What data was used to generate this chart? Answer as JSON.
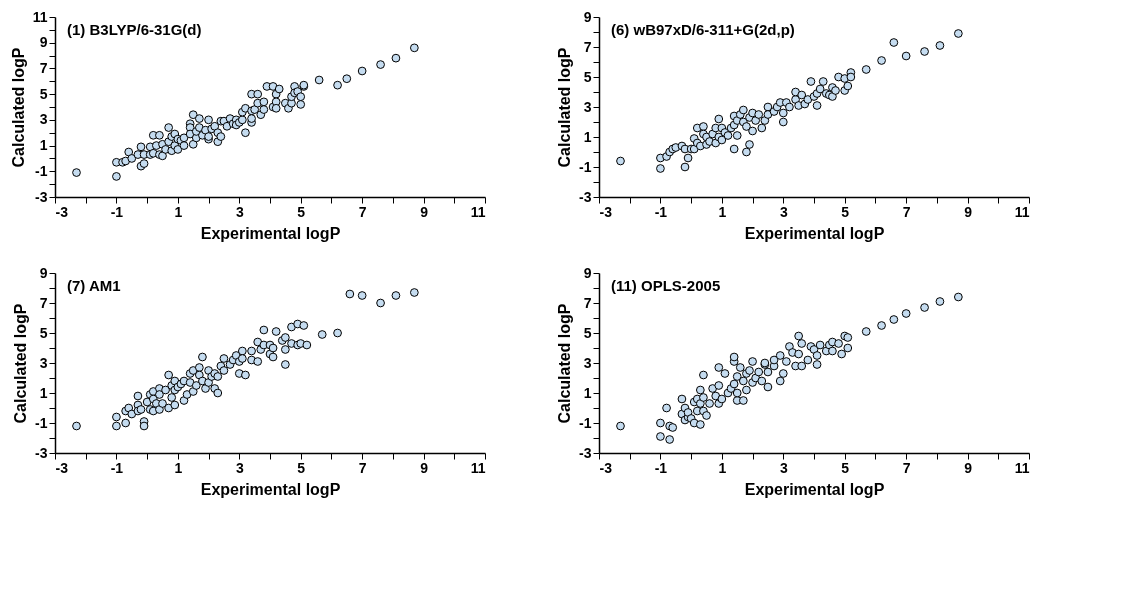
{
  "chart_data": [
    {
      "type": "scatter",
      "title": "(1) B3LYP/6-31G(d)",
      "xlabel": "Experimental logP",
      "ylabel": "Calculated logP",
      "color": "#c5dcf0",
      "marker": "circle",
      "grid": false,
      "xlim": [
        -3,
        11
      ],
      "ylim": [
        -3,
        11
      ],
      "xticks": [
        -3,
        {
          "value": -2,
          "label": null
        },
        -1,
        {
          "value": 0,
          "label": null
        },
        1,
        {
          "value": 2,
          "label": null
        },
        3,
        {
          "value": 4,
          "label": null
        },
        5,
        {
          "value": 6,
          "label": null
        },
        7,
        {
          "value": 8,
          "label": null
        },
        9,
        {
          "value": 10,
          "label": null
        },
        11
      ],
      "yticks": [
        -3,
        {
          "value": -2,
          "label": null
        },
        -1,
        {
          "value": 0,
          "label": null
        },
        1,
        {
          "value": 2,
          "label": null
        },
        3,
        {
          "value": 4,
          "label": null
        },
        5,
        {
          "value": 6,
          "label": null
        },
        7,
        {
          "value": 8,
          "label": null
        },
        9,
        {
          "value": 10,
          "label": null
        },
        11
      ],
      "x": [
        -2.3,
        -1,
        -1,
        -0.8,
        -0.7,
        -0.6,
        -0.5,
        -0.3,
        -0.2,
        -0.2,
        -0.1,
        -0.1,
        0.1,
        0.1,
        0.2,
        0.2,
        0.3,
        0.4,
        0.4,
        0.5,
        0.5,
        0.6,
        0.7,
        0.7,
        0.8,
        0.8,
        0.9,
        0.9,
        1.0,
        1.0,
        1.1,
        1.2,
        1.2,
        1.4,
        1.4,
        1.4,
        1.5,
        1.5,
        1.6,
        1.6,
        1.7,
        1.7,
        1.8,
        1.9,
        2.0,
        2.0,
        2.0,
        2.1,
        2.2,
        2.3,
        2.3,
        2.4,
        2.4,
        2.5,
        2.6,
        2.7,
        2.8,
        2.9,
        2.9,
        3.0,
        3.1,
        3.1,
        3.2,
        3.2,
        3.4,
        3.4,
        3.4,
        3.4,
        3.5,
        3.6,
        3.6,
        3.7,
        3.8,
        3.8,
        3.9,
        4.1,
        4.1,
        4.2,
        4.2,
        4.2,
        4.3,
        4.5,
        4.6,
        4.7,
        4.7,
        4.8,
        4.8,
        4.9,
        5.0,
        5.0,
        5.1,
        5.1,
        5.6,
        6.2,
        6.5,
        7.0,
        7.6,
        8.1,
        8.7
      ],
      "values": [
        -1.1,
        -0.3,
        -1.4,
        -0.3,
        -0.2,
        0.5,
        0.0,
        0.3,
        0.9,
        -0.6,
        -0.4,
        0.3,
        0.3,
        0.9,
        1.8,
        0.4,
        1.0,
        1.8,
        0.3,
        1.1,
        0.2,
        0.7,
        1.3,
        2.4,
        1.7,
        0.6,
        1.0,
        1.9,
        1.5,
        0.7,
        1.4,
        1.0,
        1.6,
        2.7,
        2.4,
        1.9,
        3.4,
        1.1,
        1.6,
        2.1,
        3.1,
        2.4,
        1.8,
        2.2,
        1.5,
        3.0,
        1.7,
        2.3,
        2.5,
        1.3,
        2.0,
        2.9,
        1.7,
        2.9,
        2.5,
        3.1,
        2.7,
        3.0,
        2.6,
        2.8,
        3.0,
        3.6,
        3.9,
        2.0,
        5.0,
        3.7,
        2.8,
        3.1,
        3.8,
        5.0,
        4.3,
        3.4,
        4.4,
        3.8,
        5.6,
        5.6,
        4.0,
        5.0,
        4.4,
        3.9,
        5.4,
        4.3,
        3.9,
        4.3,
        4.8,
        5.6,
        5.1,
        5.2,
        4.2,
        4.8,
        5.6,
        5.7,
        6.1,
        5.7,
        6.2,
        6.8,
        7.3,
        7.8,
        8.6
      ]
    },
    {
      "type": "scatter",
      "title": "(6) wB97xD/6-311+G(2d,p)",
      "xlabel": "Experimental logP",
      "ylabel": "Calculated logP",
      "color": "#c5dcf0",
      "marker": "circle",
      "grid": false,
      "xlim": [
        -3,
        11
      ],
      "ylim": [
        -3,
        9
      ],
      "xticks": [
        -3,
        {
          "value": -2,
          "label": null
        },
        -1,
        {
          "value": 0,
          "label": null
        },
        1,
        {
          "value": 2,
          "label": null
        },
        3,
        {
          "value": 4,
          "label": null
        },
        5,
        {
          "value": 6,
          "label": null
        },
        7,
        {
          "value": 8,
          "label": null
        },
        9,
        {
          "value": 10,
          "label": null
        },
        11
      ],
      "yticks": [
        -3,
        {
          "value": -2,
          "label": null
        },
        -1,
        {
          "value": 0,
          "label": null
        },
        1,
        {
          "value": 2,
          "label": null
        },
        3,
        {
          "value": 4,
          "label": null
        },
        5,
        {
          "value": 6,
          "label": null
        },
        7,
        {
          "value": 8,
          "label": null
        },
        9
      ],
      "x": [
        -2.3,
        -1,
        -1,
        -0.8,
        -0.7,
        -0.6,
        -0.5,
        -0.3,
        -0.2,
        -0.2,
        -0.1,
        0,
        0.1,
        0.1,
        0.2,
        0.2,
        0.3,
        0.4,
        0.4,
        0.5,
        0.5,
        0.6,
        0.7,
        0.8,
        0.8,
        0.9,
        0.9,
        1.0,
        1.0,
        1.1,
        1.2,
        1.3,
        1.4,
        1.4,
        1.4,
        1.5,
        1.5,
        1.6,
        1.7,
        1.7,
        1.8,
        1.8,
        1.9,
        1.9,
        2.0,
        2.0,
        2.1,
        2.2,
        2.3,
        2.4,
        2.5,
        2.5,
        2.7,
        2.8,
        2.9,
        3.0,
        3.0,
        3.1,
        3.2,
        3.4,
        3.4,
        3.5,
        3.6,
        3.7,
        3.8,
        3.9,
        4.0,
        4.1,
        4.1,
        4.2,
        4.3,
        4.4,
        4.5,
        4.6,
        4.6,
        4.7,
        4.8,
        5.0,
        5.0,
        5.1,
        5.2,
        5.2,
        5.7,
        6.2,
        6.6,
        7.0,
        7.6,
        8.1,
        8.7
      ],
      "values": [
        -0.6,
        -0.4,
        -1.1,
        -0.3,
        0.0,
        0.2,
        0.3,
        0.4,
        0.2,
        -1.0,
        -0.4,
        0.2,
        0.9,
        0.2,
        1.6,
        0.6,
        0.4,
        1.7,
        1.2,
        0.5,
        1.0,
        0.7,
        1.2,
        1.6,
        0.6,
        1.0,
        2.2,
        0.8,
        1.6,
        1.3,
        1.1,
        1.6,
        1.8,
        2.4,
        0.2,
        1.1,
        2.1,
        2.5,
        2.8,
        2.0,
        1.7,
        0.0,
        0.5,
        2.3,
        1.4,
        2.6,
        2.1,
        2.5,
        1.6,
        2.1,
        3.0,
        2.5,
        2.7,
        3.0,
        3.3,
        2.6,
        2.0,
        3.3,
        3.0,
        3.5,
        4.0,
        3.1,
        3.8,
        3.2,
        3.5,
        4.7,
        3.7,
        3.9,
        3.1,
        4.2,
        4.7,
        3.9,
        3.8,
        3.7,
        4.3,
        4.1,
        5.0,
        4.9,
        4.1,
        4.4,
        5.3,
        5.0,
        5.5,
        6.1,
        7.3,
        6.4,
        6.7,
        7.1,
        7.9
      ]
    },
    {
      "type": "scatter",
      "title": "(7) AM1",
      "xlabel": "Experimental logP",
      "ylabel": "Calculated logP",
      "color": "#c5dcf0",
      "marker": "circle",
      "grid": false,
      "xlim": [
        -3,
        11
      ],
      "ylim": [
        -3,
        9
      ],
      "xticks": [
        -3,
        {
          "value": -2,
          "label": null
        },
        -1,
        {
          "value": 0,
          "label": null
        },
        1,
        {
          "value": 2,
          "label": null
        },
        3,
        {
          "value": 4,
          "label": null
        },
        5,
        {
          "value": 6,
          "label": null
        },
        7,
        {
          "value": 8,
          "label": null
        },
        9,
        {
          "value": 10,
          "label": null
        },
        11
      ],
      "yticks": [
        -3,
        {
          "value": -2,
          "label": null
        },
        -1,
        {
          "value": 0,
          "label": null
        },
        1,
        {
          "value": 2,
          "label": null
        },
        3,
        {
          "value": 4,
          "label": null
        },
        5,
        {
          "value": 6,
          "label": null
        },
        7,
        {
          "value": 8,
          "label": null
        },
        9
      ],
      "x": [
        -2.3,
        -1,
        -1,
        -0.7,
        -0.7,
        -0.6,
        -0.5,
        -0.3,
        -0.3,
        -0.3,
        -0.2,
        -0.1,
        -0.1,
        0,
        0.1,
        0.1,
        0.2,
        0.2,
        0.2,
        0.3,
        0.4,
        0.4,
        0.4,
        0.5,
        0.6,
        0.7,
        0.7,
        0.8,
        0.8,
        0.9,
        0.9,
        0.9,
        1.0,
        1.1,
        1.2,
        1.2,
        1.3,
        1.4,
        1.4,
        1.5,
        1.5,
        1.6,
        1.7,
        1.7,
        1.8,
        1.8,
        1.9,
        2.0,
        2.0,
        2.1,
        2.2,
        2.2,
        2.3,
        2.3,
        2.4,
        2.5,
        2.5,
        2.7,
        2.8,
        2.9,
        3.0,
        3.0,
        3.1,
        3.1,
        3.2,
        3.4,
        3.4,
        3.6,
        3.6,
        3.7,
        3.8,
        3.8,
        4.0,
        4.0,
        4.1,
        4.1,
        4.2,
        4.4,
        4.5,
        4.5,
        4.5,
        4.7,
        4.7,
        4.9,
        4.9,
        5.0,
        5.1,
        5.2,
        5.7,
        6.2,
        6.6,
        7.0,
        7.6,
        8.1,
        8.7
      ],
      "values": [
        -1.2,
        -0.6,
        -1.2,
        -0.2,
        -1.0,
        0.0,
        -0.4,
        0.8,
        0.2,
        -0.2,
        -0.1,
        -0.9,
        -1.2,
        0.4,
        0.9,
        -0.1,
        1.1,
        0.6,
        -0.2,
        0.3,
        1.3,
        0.9,
        -0.1,
        0.3,
        1.2,
        2.2,
        0.0,
        1.5,
        0.7,
        1.8,
        1.2,
        0.2,
        1.4,
        1.6,
        1.8,
        0.5,
        0.9,
        2.3,
        1.7,
        2.5,
        1.1,
        1.5,
        2.7,
        2.2,
        3.4,
        1.8,
        1.3,
        2.5,
        1.7,
        2.1,
        1.3,
        2.3,
        1.0,
        2.1,
        2.8,
        3.3,
        2.5,
        2.9,
        3.2,
        3.5,
        2.3,
        3.1,
        3.8,
        3.3,
        2.2,
        3.8,
        3.2,
        4.4,
        3.1,
        3.9,
        4.2,
        5.2,
        4.2,
        3.6,
        3.4,
        4.0,
        5.1,
        4.5,
        4.7,
        2.9,
        3.9,
        4.3,
        5.4,
        5.6,
        4.2,
        4.3,
        5.5,
        4.2,
        4.9,
        5.0,
        7.6,
        7.5,
        7.0,
        7.5,
        7.7
      ]
    },
    {
      "type": "scatter",
      "title": "(11) OPLS-2005",
      "xlabel": "Experimental logP",
      "ylabel": "Calculated logP",
      "color": "#c5dcf0",
      "marker": "circle",
      "grid": false,
      "xlim": [
        -3,
        11
      ],
      "ylim": [
        -3,
        9
      ],
      "xticks": [
        -3,
        {
          "value": -2,
          "label": null
        },
        -1,
        {
          "value": 0,
          "label": null
        },
        1,
        {
          "value": 2,
          "label": null
        },
        3,
        {
          "value": 4,
          "label": null
        },
        5,
        {
          "value": 6,
          "label": null
        },
        7,
        {
          "value": 8,
          "label": null
        },
        9,
        {
          "value": 10,
          "label": null
        },
        11
      ],
      "yticks": [
        -3,
        {
          "value": -2,
          "label": null
        },
        -1,
        {
          "value": 0,
          "label": null
        },
        1,
        {
          "value": 2,
          "label": null
        },
        3,
        {
          "value": 4,
          "label": null
        },
        5,
        {
          "value": 6,
          "label": null
        },
        7,
        {
          "value": 8,
          "label": null
        },
        9
      ],
      "x": [
        -2.3,
        -1,
        -1,
        -0.8,
        -0.7,
        -0.6,
        -0.7,
        -0.3,
        -0.3,
        -0.2,
        -0.2,
        -0.1,
        -0.1,
        0,
        0.1,
        0.1,
        0.2,
        0.2,
        0.3,
        0.3,
        0.3,
        0.4,
        0.4,
        0.4,
        0.5,
        0.6,
        0.7,
        0.8,
        0.9,
        0.9,
        0.9,
        1.0,
        1.1,
        1.2,
        1.3,
        1.4,
        1.4,
        1.4,
        1.5,
        1.5,
        1.5,
        1.6,
        1.7,
        1.7,
        1.8,
        1.8,
        1.9,
        2.0,
        2.0,
        2.1,
        2.2,
        2.3,
        2.4,
        2.4,
        2.5,
        2.5,
        2.7,
        2.7,
        2.9,
        2.9,
        3.0,
        3.1,
        3.2,
        3.3,
        3.4,
        3.5,
        3.5,
        3.6,
        3.6,
        3.8,
        3.9,
        4.0,
        4.1,
        4.1,
        4.2,
        4.4,
        4.5,
        4.6,
        4.6,
        4.8,
        4.9,
        5.0,
        5.1,
        5.1,
        5.7,
        6.2,
        6.6,
        7.0,
        7.6,
        8.1,
        8.7
      ],
      "values": [
        -1.2,
        -1.0,
        -1.9,
        0.0,
        -1.2,
        -1.3,
        -2.1,
        0.6,
        -0.4,
        0.0,
        -0.8,
        -0.6,
        -0.3,
        -0.7,
        0.4,
        -1.0,
        0.6,
        -0.2,
        -1.1,
        1.2,
        0.3,
        0.7,
        2.2,
        -0.2,
        -0.5,
        0.3,
        1.3,
        0.8,
        0.3,
        1.5,
        2.7,
        0.6,
        2.3,
        1.0,
        1.3,
        1.6,
        3.1,
        3.4,
        0.5,
        2.1,
        1.0,
        2.7,
        1.8,
        0.5,
        2.3,
        1.2,
        2.5,
        1.7,
        3.1,
        2.0,
        2.4,
        1.8,
        2.9,
        3.0,
        1.4,
        2.4,
        2.8,
        3.2,
        1.8,
        3.5,
        2.3,
        3.1,
        4.1,
        3.7,
        2.8,
        4.8,
        3.6,
        4.3,
        2.8,
        3.2,
        4.1,
        3.9,
        2.9,
        3.5,
        4.2,
        3.8,
        4.2,
        4.4,
        3.8,
        4.3,
        3.6,
        4.8,
        4.0,
        4.7,
        5.1,
        5.5,
        5.9,
        6.3,
        6.7,
        7.1,
        7.4
      ]
    }
  ]
}
